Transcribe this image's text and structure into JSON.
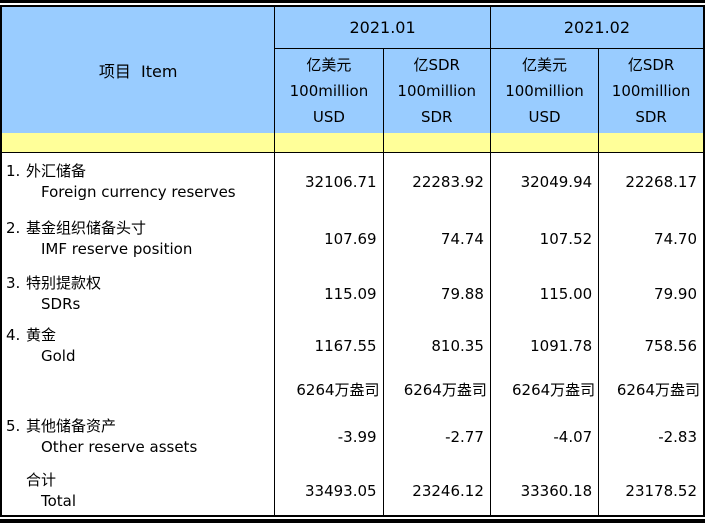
{
  "table": {
    "item_header": "项目  Item",
    "period_headers": [
      "2021.01",
      "2021.02"
    ],
    "unit_headers": [
      {
        "lines": [
          "亿美元",
          "100million",
          "USD"
        ]
      },
      {
        "lines": [
          "亿SDR",
          "100million",
          "SDR"
        ]
      },
      {
        "lines": [
          "亿美元",
          "100million",
          "USD"
        ]
      },
      {
        "lines": [
          "亿SDR",
          "100million",
          "SDR"
        ]
      }
    ],
    "rows": [
      {
        "num": "1.",
        "cn": "外汇储备",
        "en": "Foreign currency reserves",
        "type": "item",
        "values": [
          "32106.71",
          "22283.92",
          "32049.94",
          "22268.17"
        ]
      },
      {
        "num": "2.",
        "cn": "基金组织储备头寸",
        "en": "IMF reserve position",
        "type": "item",
        "values": [
          "107.69",
          "74.74",
          "107.52",
          "74.70"
        ]
      },
      {
        "num": "3.",
        "cn": "特别提款权",
        "en": "SDRs",
        "type": "item",
        "values": [
          "115.09",
          "79.88",
          "115.00",
          "79.90"
        ]
      },
      {
        "num": "4.",
        "cn": "黄金",
        "en": "Gold",
        "type": "item",
        "values": [
          "1167.55",
          "810.35",
          "1091.78",
          "758.56"
        ]
      },
      {
        "num": "",
        "cn": "",
        "en": "",
        "type": "ounces",
        "values": [
          "6264万盎司",
          "6264万盎司",
          "6264万盎司",
          "6264万盎司"
        ]
      },
      {
        "num": "5.",
        "cn": "其他储备资产",
        "en": "Other reserve assets",
        "type": "item",
        "values": [
          "-3.99",
          "-2.77",
          "-4.07",
          "-2.83"
        ]
      },
      {
        "num": "",
        "cn": "合计",
        "en": "Total",
        "type": "total",
        "values": [
          "33493.05",
          "23246.12",
          "33360.18",
          "23178.52"
        ]
      }
    ],
    "colors": {
      "header_blue": "#99CCFF",
      "stripe_yellow": "#FFFF99",
      "border_black": "#000000"
    }
  }
}
